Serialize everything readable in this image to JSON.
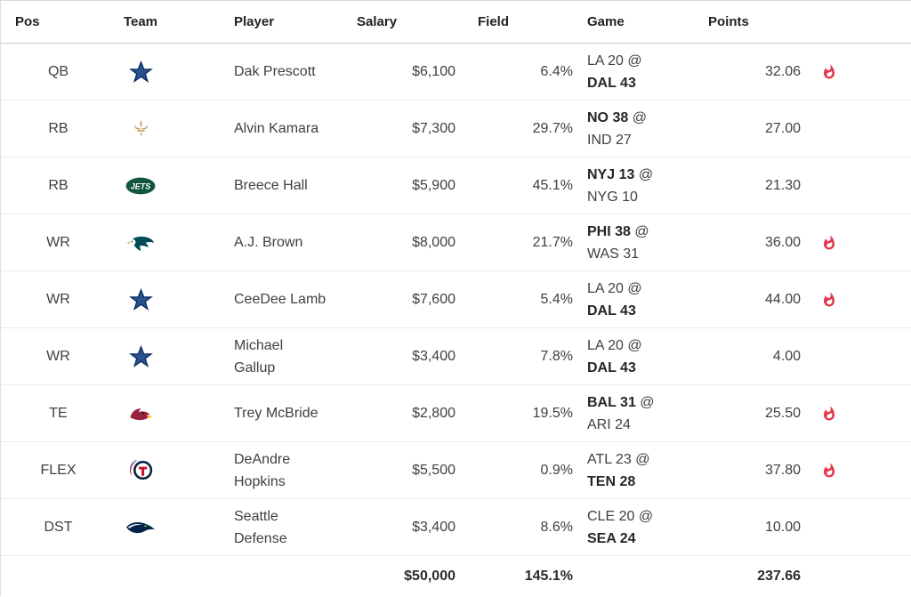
{
  "table": {
    "columns": {
      "pos": "Pos",
      "team": "Team",
      "player": "Player",
      "salary": "Salary",
      "field": "Field",
      "game": "Game",
      "points": "Points"
    },
    "rows": [
      {
        "pos": "QB",
        "team": {
          "key": "dal",
          "name": "Dallas Cowboys",
          "color": "#29518f"
        },
        "player": "Dak Prescott",
        "player_lines": [
          "Dak Prescott"
        ],
        "salary": "$6,100",
        "field": "6.4%",
        "game": {
          "away": "LA 20",
          "sep": "@",
          "home": "DAL 43",
          "bold": "home"
        },
        "points": "32.06",
        "hot": true
      },
      {
        "pos": "RB",
        "team": {
          "key": "no",
          "name": "New Orleans Saints",
          "color": "#c6a86b"
        },
        "player": "Alvin Kamara",
        "player_lines": [
          "Alvin Kamara"
        ],
        "salary": "$7,300",
        "field": "29.7%",
        "game": {
          "away": "NO 38",
          "sep": "@",
          "home": "IND 27",
          "bold": "away"
        },
        "points": "27.00",
        "hot": false
      },
      {
        "pos": "RB",
        "team": {
          "key": "nyj",
          "name": "New York Jets",
          "color": "#115740"
        },
        "player": "Breece Hall",
        "player_lines": [
          "Breece Hall"
        ],
        "salary": "$5,900",
        "field": "45.1%",
        "game": {
          "away": "NYJ 13",
          "sep": "@",
          "home": "NYG 10",
          "bold": "away"
        },
        "points": "21.30",
        "hot": false
      },
      {
        "pos": "WR",
        "team": {
          "key": "phi",
          "name": "Philadelphia Eagles",
          "color": "#004c54"
        },
        "player": "A.J. Brown",
        "player_lines": [
          "A.J. Brown"
        ],
        "salary": "$8,000",
        "field": "21.7%",
        "game": {
          "away": "PHI 38",
          "sep": "@",
          "home": "WAS 31",
          "bold": "away"
        },
        "points": "36.00",
        "hot": true
      },
      {
        "pos": "WR",
        "team": {
          "key": "dal",
          "name": "Dallas Cowboys",
          "color": "#29518f"
        },
        "player": "CeeDee Lamb",
        "player_lines": [
          "CeeDee Lamb"
        ],
        "salary": "$7,600",
        "field": "5.4%",
        "game": {
          "away": "LA 20",
          "sep": "@",
          "home": "DAL 43",
          "bold": "home"
        },
        "points": "44.00",
        "hot": true
      },
      {
        "pos": "WR",
        "team": {
          "key": "dal",
          "name": "Dallas Cowboys",
          "color": "#29518f"
        },
        "player": "Michael Gallup",
        "player_lines": [
          "Michael",
          "Gallup"
        ],
        "salary": "$3,400",
        "field": "7.8%",
        "game": {
          "away": "LA 20",
          "sep": "@",
          "home": "DAL 43",
          "bold": "home"
        },
        "points": "4.00",
        "hot": false
      },
      {
        "pos": "TE",
        "team": {
          "key": "ari",
          "name": "Arizona Cardinals",
          "color": "#97233f"
        },
        "player": "Trey McBride",
        "player_lines": [
          "Trey McBride"
        ],
        "salary": "$2,800",
        "field": "19.5%",
        "game": {
          "away": "BAL 31",
          "sep": "@",
          "home": "ARI 24",
          "bold": "away"
        },
        "points": "25.50",
        "hot": true
      },
      {
        "pos": "FLEX",
        "team": {
          "key": "ten",
          "name": "Tennessee Titans",
          "color": "#0c2340"
        },
        "player": "DeAndre Hopkins",
        "player_lines": [
          "DeAndre",
          "Hopkins"
        ],
        "salary": "$5,500",
        "field": "0.9%",
        "game": {
          "away": "ATL 23",
          "sep": "@",
          "home": "TEN 28",
          "bold": "home"
        },
        "points": "37.80",
        "hot": true
      },
      {
        "pos": "DST",
        "team": {
          "key": "sea",
          "name": "Seattle Seahawks",
          "color": "#01244b"
        },
        "player": "Seattle Defense",
        "player_lines": [
          "Seattle",
          "Defense"
        ],
        "salary": "$3,400",
        "field": "8.6%",
        "game": {
          "away": "CLE 20",
          "sep": "@",
          "home": "SEA 24",
          "bold": "home"
        },
        "points": "10.00",
        "hot": false
      }
    ],
    "totals": {
      "salary": "$50,000",
      "field": "145.1%",
      "points": "237.66"
    },
    "icons": {
      "hot": "flame-icon",
      "flame_color": "#e2374b"
    }
  }
}
